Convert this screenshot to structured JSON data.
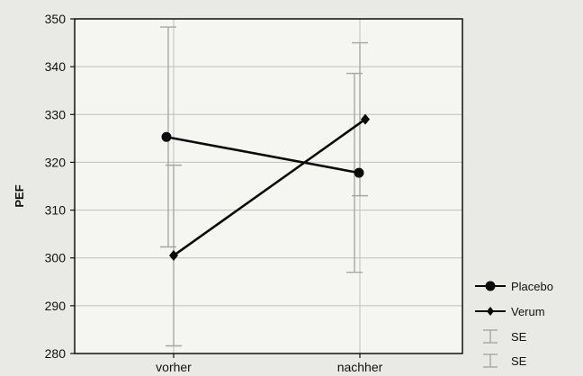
{
  "chart_data": {
    "type": "line",
    "title": "",
    "xlabel": "",
    "ylabel": "PEF",
    "categories": [
      "vorher",
      "nachher"
    ],
    "ylim": [
      280,
      350
    ],
    "yticks": [
      280,
      290,
      300,
      310,
      320,
      330,
      340,
      350
    ],
    "grid": true,
    "legend_position": "right",
    "series": [
      {
        "name": "Placebo",
        "marker": "circle",
        "values": [
          325.3,
          317.8
        ],
        "se_low": [
          302.3,
          297.0
        ],
        "se_high": [
          348.3,
          338.6
        ]
      },
      {
        "name": "Verum",
        "marker": "diamond",
        "values": [
          300.5,
          329.0
        ],
        "se_low": [
          281.6,
          313.0
        ],
        "se_high": [
          319.4,
          345.0
        ]
      }
    ],
    "legend": [
      "Placebo",
      "Verum",
      "SE",
      "SE"
    ]
  },
  "colors": {
    "background": "#e9e9e6",
    "plot_background": "#f5f5f2",
    "line": "#0a0a0a",
    "grid": "#bfbfbf",
    "errorbar": "#a6a6a6"
  }
}
